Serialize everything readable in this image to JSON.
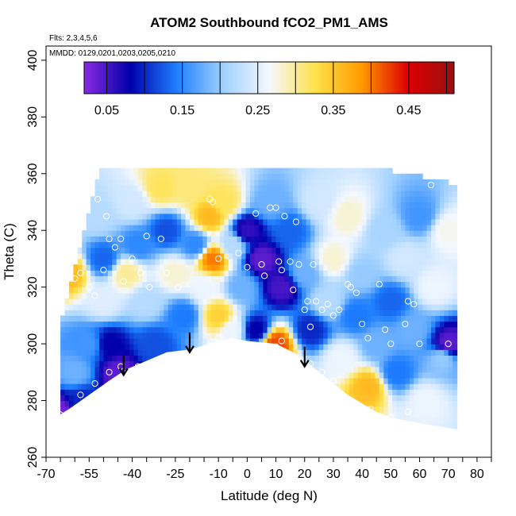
{
  "chart_data": {
    "type": "heatmap",
    "title": "ATOM2 Southbound fCO2_PM1_AMS",
    "subtitle_flights": "Flts: 2,3,4,5,6",
    "subtitle_dates": "MMDD: 0129,0201,0203,0205,0210",
    "xlabel": "Latitude (deg N)",
    "ylabel": "Theta (C)",
    "xlim": [
      -70,
      85
    ],
    "ylim": [
      260,
      405
    ],
    "xticks": [
      -70,
      -55,
      -40,
      -25,
      -10,
      0,
      10,
      20,
      30,
      40,
      50,
      60,
      70,
      80
    ],
    "yticks": [
      260,
      280,
      300,
      320,
      340,
      360,
      380,
      400
    ],
    "colorbar": {
      "range": [
        0.02,
        0.51
      ],
      "ticks": [
        0.05,
        0.15,
        0.25,
        0.35,
        0.45
      ],
      "colors": [
        "#8a2be2",
        "#0000aa",
        "#1e7fff",
        "#9fd0ff",
        "#f4f8ff",
        "#ffe24a",
        "#ff9a00",
        "#dd0000",
        "#9a1010"
      ]
    },
    "surface_boundary": [
      [
        -70,
        272
      ],
      [
        -62,
        277
      ],
      [
        -55,
        282
      ],
      [
        -48,
        287
      ],
      [
        -42,
        291
      ],
      [
        -35,
        294
      ],
      [
        -28,
        297
      ],
      [
        -20,
        298
      ],
      [
        -10,
        301
      ],
      [
        -5,
        302
      ],
      [
        0,
        301
      ],
      [
        10,
        300
      ],
      [
        18,
        296
      ],
      [
        25,
        290
      ],
      [
        30,
        286
      ],
      [
        35,
        282
      ],
      [
        40,
        279
      ],
      [
        45,
        276
      ],
      [
        50,
        274
      ],
      [
        60,
        272
      ],
      [
        72,
        270
      ]
    ],
    "field_samples": [
      {
        "lat": -62,
        "theta": 325,
        "value": 0.36
      },
      {
        "lat": -60,
        "theta": 290,
        "value": 0.18
      },
      {
        "lat": -58,
        "theta": 280,
        "value": 0.1
      },
      {
        "lat": -55,
        "theta": 300,
        "value": 0.16
      },
      {
        "lat": -52,
        "theta": 345,
        "value": 0.22
      },
      {
        "lat": -50,
        "theta": 330,
        "value": 0.13
      },
      {
        "lat": -50,
        "theta": 315,
        "value": 0.25
      },
      {
        "lat": -48,
        "theta": 300,
        "value": 0.08
      },
      {
        "lat": -45,
        "theta": 290,
        "value": 0.04
      },
      {
        "lat": -42,
        "theta": 325,
        "value": 0.3
      },
      {
        "lat": -40,
        "theta": 350,
        "value": 0.24
      },
      {
        "lat": -38,
        "theta": 335,
        "value": 0.15
      },
      {
        "lat": -35,
        "theta": 315,
        "value": 0.22
      },
      {
        "lat": -32,
        "theta": 300,
        "value": 0.12
      },
      {
        "lat": -30,
        "theta": 355,
        "value": 0.32
      },
      {
        "lat": -28,
        "theta": 340,
        "value": 0.12
      },
      {
        "lat": -25,
        "theta": 325,
        "value": 0.28
      },
      {
        "lat": -22,
        "theta": 310,
        "value": 0.14
      },
      {
        "lat": -20,
        "theta": 355,
        "value": 0.31
      },
      {
        "lat": -18,
        "theta": 335,
        "value": 0.15
      },
      {
        "lat": -15,
        "theta": 320,
        "value": 0.26
      },
      {
        "lat": -13,
        "theta": 345,
        "value": 0.36
      },
      {
        "lat": -12,
        "theta": 330,
        "value": 0.4
      },
      {
        "lat": -10,
        "theta": 310,
        "value": 0.34
      },
      {
        "lat": -8,
        "theta": 350,
        "value": 0.32
      },
      {
        "lat": -5,
        "theta": 335,
        "value": 0.22
      },
      {
        "lat": -2,
        "theta": 320,
        "value": 0.18
      },
      {
        "lat": 0,
        "theta": 340,
        "value": 0.06
      },
      {
        "lat": 3,
        "theta": 305,
        "value": 0.08
      },
      {
        "lat": 5,
        "theta": 330,
        "value": 0.04
      },
      {
        "lat": 8,
        "theta": 350,
        "value": 0.18
      },
      {
        "lat": 10,
        "theta": 300,
        "value": 0.42
      },
      {
        "lat": 12,
        "theta": 320,
        "value": 0.05
      },
      {
        "lat": 15,
        "theta": 340,
        "value": 0.13
      },
      {
        "lat": 20,
        "theta": 325,
        "value": 0.18
      },
      {
        "lat": 22,
        "theta": 305,
        "value": 0.1
      },
      {
        "lat": 25,
        "theta": 350,
        "value": 0.24
      },
      {
        "lat": 28,
        "theta": 315,
        "value": 0.22
      },
      {
        "lat": 30,
        "theta": 330,
        "value": 0.28
      },
      {
        "lat": 33,
        "theta": 295,
        "value": 0.26
      },
      {
        "lat": 35,
        "theta": 345,
        "value": 0.28
      },
      {
        "lat": 38,
        "theta": 310,
        "value": 0.14
      },
      {
        "lat": 40,
        "theta": 325,
        "value": 0.2
      },
      {
        "lat": 42,
        "theta": 285,
        "value": 0.36
      },
      {
        "lat": 45,
        "theta": 300,
        "value": 0.18
      },
      {
        "lat": 48,
        "theta": 340,
        "value": 0.21
      },
      {
        "lat": 50,
        "theta": 315,
        "value": 0.13
      },
      {
        "lat": 52,
        "theta": 290,
        "value": 0.14
      },
      {
        "lat": 55,
        "theta": 330,
        "value": 0.24
      },
      {
        "lat": 58,
        "theta": 305,
        "value": 0.18
      },
      {
        "lat": 60,
        "theta": 345,
        "value": 0.16
      },
      {
        "lat": 62,
        "theta": 280,
        "value": 0.26
      },
      {
        "lat": 65,
        "theta": 320,
        "value": 0.26
      },
      {
        "lat": 68,
        "theta": 295,
        "value": 0.2
      },
      {
        "lat": 70,
        "theta": 300,
        "value": 0.04
      },
      {
        "lat": 70,
        "theta": 340,
        "value": 0.27
      },
      {
        "lat": -65,
        "theta": 276,
        "value": 0.03
      },
      {
        "lat": -5,
        "theta": 305,
        "value": 0.26
      }
    ],
    "observations": [
      {
        "lat": -52,
        "theta": 351
      },
      {
        "lat": -49,
        "theta": 345
      },
      {
        "lat": -46,
        "theta": 334
      },
      {
        "lat": -43,
        "theta": 322
      },
      {
        "lat": -50,
        "theta": 326
      },
      {
        "lat": -48,
        "theta": 337
      },
      {
        "lat": -44,
        "theta": 337
      },
      {
        "lat": -40,
        "theta": 330
      },
      {
        "lat": -37,
        "theta": 325
      },
      {
        "lat": -34,
        "theta": 320
      },
      {
        "lat": -35,
        "theta": 338
      },
      {
        "lat": -30,
        "theta": 337
      },
      {
        "lat": -28,
        "theta": 325
      },
      {
        "lat": -24,
        "theta": 320
      },
      {
        "lat": -55,
        "theta": 320
      },
      {
        "lat": -58,
        "theta": 325
      },
      {
        "lat": -60,
        "theta": 323
      },
      {
        "lat": -53,
        "theta": 317
      },
      {
        "lat": -65,
        "theta": 275
      },
      {
        "lat": -58,
        "theta": 282
      },
      {
        "lat": -53,
        "theta": 286
      },
      {
        "lat": -48,
        "theta": 290
      },
      {
        "lat": -44,
        "theta": 292
      },
      {
        "lat": -38,
        "theta": 292
      },
      {
        "lat": -13,
        "theta": 351
      },
      {
        "lat": -12,
        "theta": 350
      },
      {
        "lat": -10,
        "theta": 330
      },
      {
        "lat": -10,
        "theta": 302
      },
      {
        "lat": -3,
        "theta": 332
      },
      {
        "lat": 0,
        "theta": 327
      },
      {
        "lat": 3,
        "theta": 346
      },
      {
        "lat": 5,
        "theta": 328
      },
      {
        "lat": 6,
        "theta": 324
      },
      {
        "lat": 8,
        "theta": 348
      },
      {
        "lat": 10,
        "theta": 348
      },
      {
        "lat": 11,
        "theta": 329
      },
      {
        "lat": 12,
        "theta": 326
      },
      {
        "lat": 13,
        "theta": 345
      },
      {
        "lat": 15,
        "theta": 329
      },
      {
        "lat": 16,
        "theta": 319
      },
      {
        "lat": 17,
        "theta": 343
      },
      {
        "lat": 18,
        "theta": 328
      },
      {
        "lat": 20,
        "theta": 312
      },
      {
        "lat": 21,
        "theta": 315
      },
      {
        "lat": 22,
        "theta": 306
      },
      {
        "lat": 23,
        "theta": 328
      },
      {
        "lat": 24,
        "theta": 315
      },
      {
        "lat": 26,
        "theta": 312
      },
      {
        "lat": 28,
        "theta": 314
      },
      {
        "lat": 30,
        "theta": 310
      },
      {
        "lat": 32,
        "theta": 312
      },
      {
        "lat": 35,
        "theta": 321
      },
      {
        "lat": 36,
        "theta": 320
      },
      {
        "lat": 38,
        "theta": 318
      },
      {
        "lat": 40,
        "theta": 307
      },
      {
        "lat": 42,
        "theta": 302
      },
      {
        "lat": 46,
        "theta": 321
      },
      {
        "lat": 48,
        "theta": 305
      },
      {
        "lat": 50,
        "theta": 300
      },
      {
        "lat": 55,
        "theta": 307
      },
      {
        "lat": 56,
        "theta": 315
      },
      {
        "lat": 58,
        "theta": 314
      },
      {
        "lat": 60,
        "theta": 300
      },
      {
        "lat": 64,
        "theta": 356
      },
      {
        "lat": 70,
        "theta": 300
      },
      {
        "lat": 10,
        "theta": 299
      },
      {
        "lat": 12,
        "theta": 301
      },
      {
        "lat": 19,
        "theta": 294
      },
      {
        "lat": 22,
        "theta": 293
      },
      {
        "lat": 26,
        "theta": 290
      },
      {
        "lat": 30,
        "theta": 287
      },
      {
        "lat": 43,
        "theta": 277
      },
      {
        "lat": 50,
        "theta": 274
      },
      {
        "lat": 56,
        "theta": 276
      }
    ],
    "arrows": [
      {
        "lat": -43,
        "theta_top": 296,
        "theta_tip": 289
      },
      {
        "lat": -20,
        "theta_top": 304,
        "theta_tip": 297
      },
      {
        "lat": 20,
        "theta_top": 299,
        "theta_tip": 292
      }
    ]
  }
}
